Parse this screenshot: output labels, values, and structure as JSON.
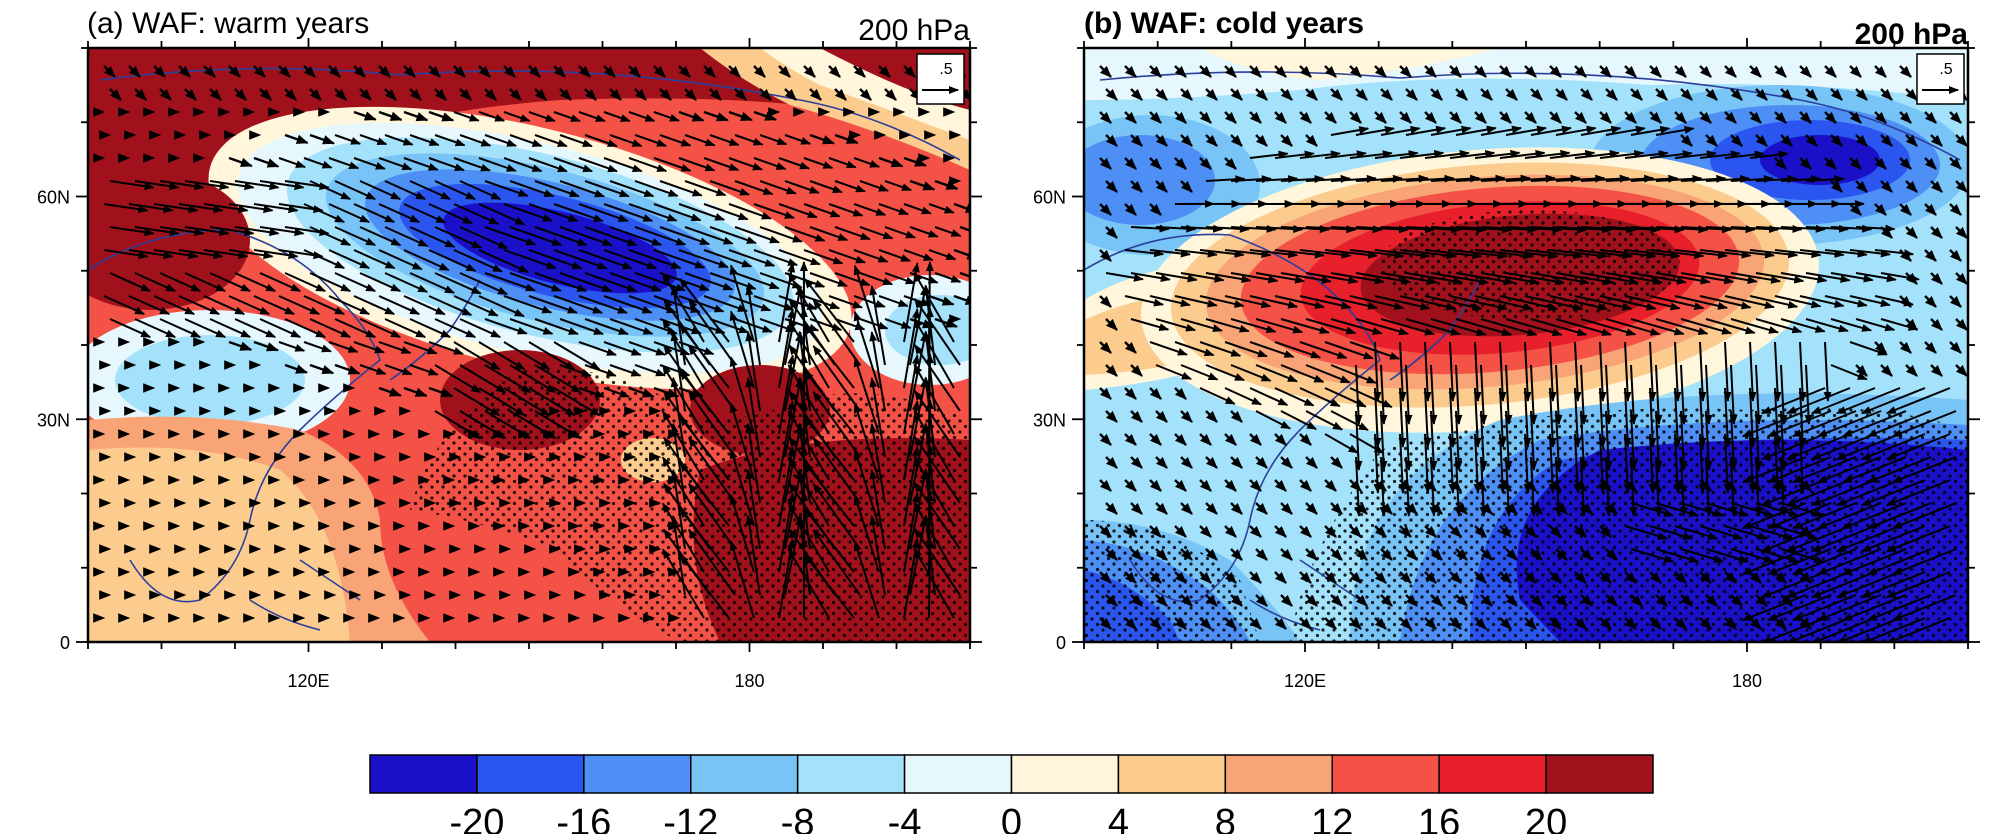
{
  "chart_data": [
    {
      "type": "contour-map",
      "title": "(a) WAF: warm years",
      "level_label": "200 hPa",
      "vector_ref_label": ".5",
      "x_ticks": [
        "120E",
        "180"
      ],
      "y_ticks": [
        "60N",
        "30N",
        "0"
      ],
      "lon_range": [
        90,
        210
      ],
      "lat_range": [
        0,
        80
      ],
      "features": [
        {
          "kind": "positive",
          "center": [
            104,
            61
          ],
          "value": 20
        },
        {
          "kind": "negative",
          "center": [
            151,
            53
          ],
          "value": -20
        },
        {
          "kind": "positive",
          "center": [
            150,
            30
          ],
          "value": 20
        },
        {
          "kind": "positive",
          "center": [
            195,
            20
          ],
          "value": 20
        },
        {
          "kind": "positive",
          "center": [
            170,
            75
          ],
          "value": 20
        }
      ]
    },
    {
      "type": "contour-map",
      "title": "(b) WAF: cold years",
      "level_label": "200 hPa",
      "vector_ref_label": ".5",
      "x_ticks": [
        "120E",
        "180"
      ],
      "y_ticks": [
        "60N",
        "30N",
        "0"
      ],
      "lon_range": [
        90,
        210
      ],
      "lat_range": [
        0,
        80
      ],
      "features": [
        {
          "kind": "positive",
          "center": [
            155,
            47
          ],
          "value": 20
        },
        {
          "kind": "negative",
          "center": [
            187,
            20
          ],
          "value": -20
        },
        {
          "kind": "negative",
          "center": [
            103,
            15
          ],
          "value": -16
        },
        {
          "kind": "negative",
          "center": [
            100,
            62
          ],
          "value": -12
        },
        {
          "kind": "negative",
          "center": [
            190,
            65
          ],
          "value": -16
        }
      ]
    }
  ],
  "colorbar": {
    "colors": [
      "#1a10c8",
      "#2a55ee",
      "#4d8ff5",
      "#78c4f6",
      "#a4e2fb",
      "#e6f7fd",
      "#fff6dc",
      "#fbcc8e",
      "#f8a476",
      "#f45246",
      "#e8202c",
      "#a1111b"
    ],
    "labels": [
      "-20",
      "-16",
      "-12",
      "-8",
      "-4",
      "0",
      "4",
      "8",
      "12",
      "16",
      "20"
    ]
  }
}
